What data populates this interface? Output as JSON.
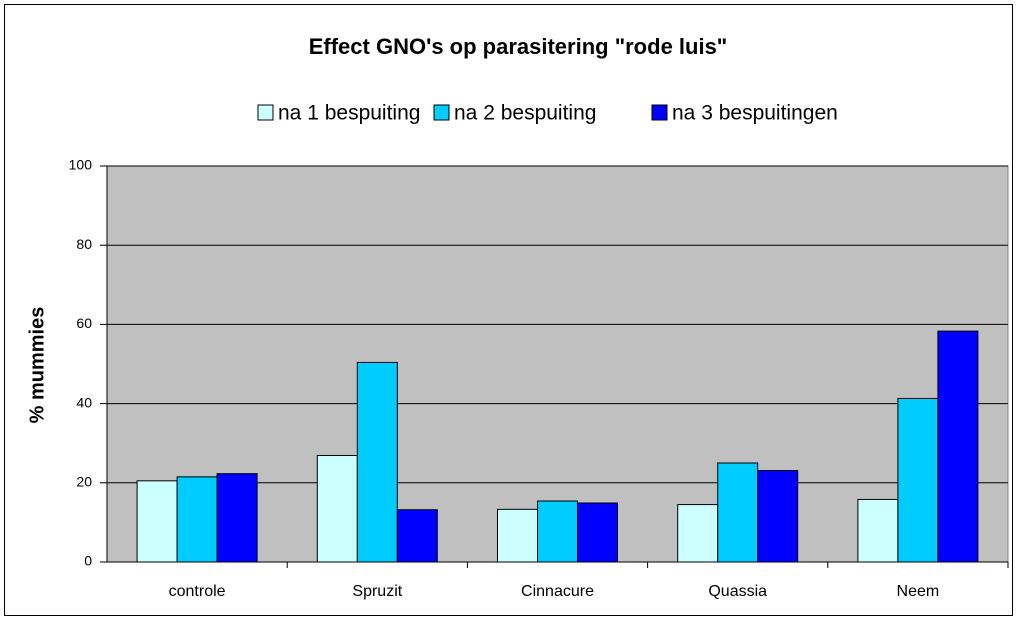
{
  "chart_data": {
    "type": "bar",
    "title": "Effect GNO's op parasitering \"rode luis\"",
    "y_label": "% mummies",
    "categories": [
      "controle",
      "Spruzit",
      "Cinnacure",
      "Quassia",
      "Neem"
    ],
    "series": [
      {
        "name": "na 1 bespuiting",
        "color": "#ccffff",
        "values": [
          20.5,
          26.9,
          13.3,
          14.5,
          15.8
        ]
      },
      {
        "name": "na 2 bespuiting",
        "color": "#00ccff",
        "values": [
          21.5,
          50.4,
          15.4,
          25.0,
          41.3
        ]
      },
      {
        "name": "na 3 bespuitingen",
        "color": "#0000ff",
        "values": [
          22.3,
          13.2,
          14.9,
          23.1,
          58.3
        ]
      }
    ],
    "ylim": [
      0,
      100
    ],
    "yticks": [
      0,
      20,
      40,
      60,
      80,
      100
    ],
    "grid": true,
    "legend": "top"
  }
}
